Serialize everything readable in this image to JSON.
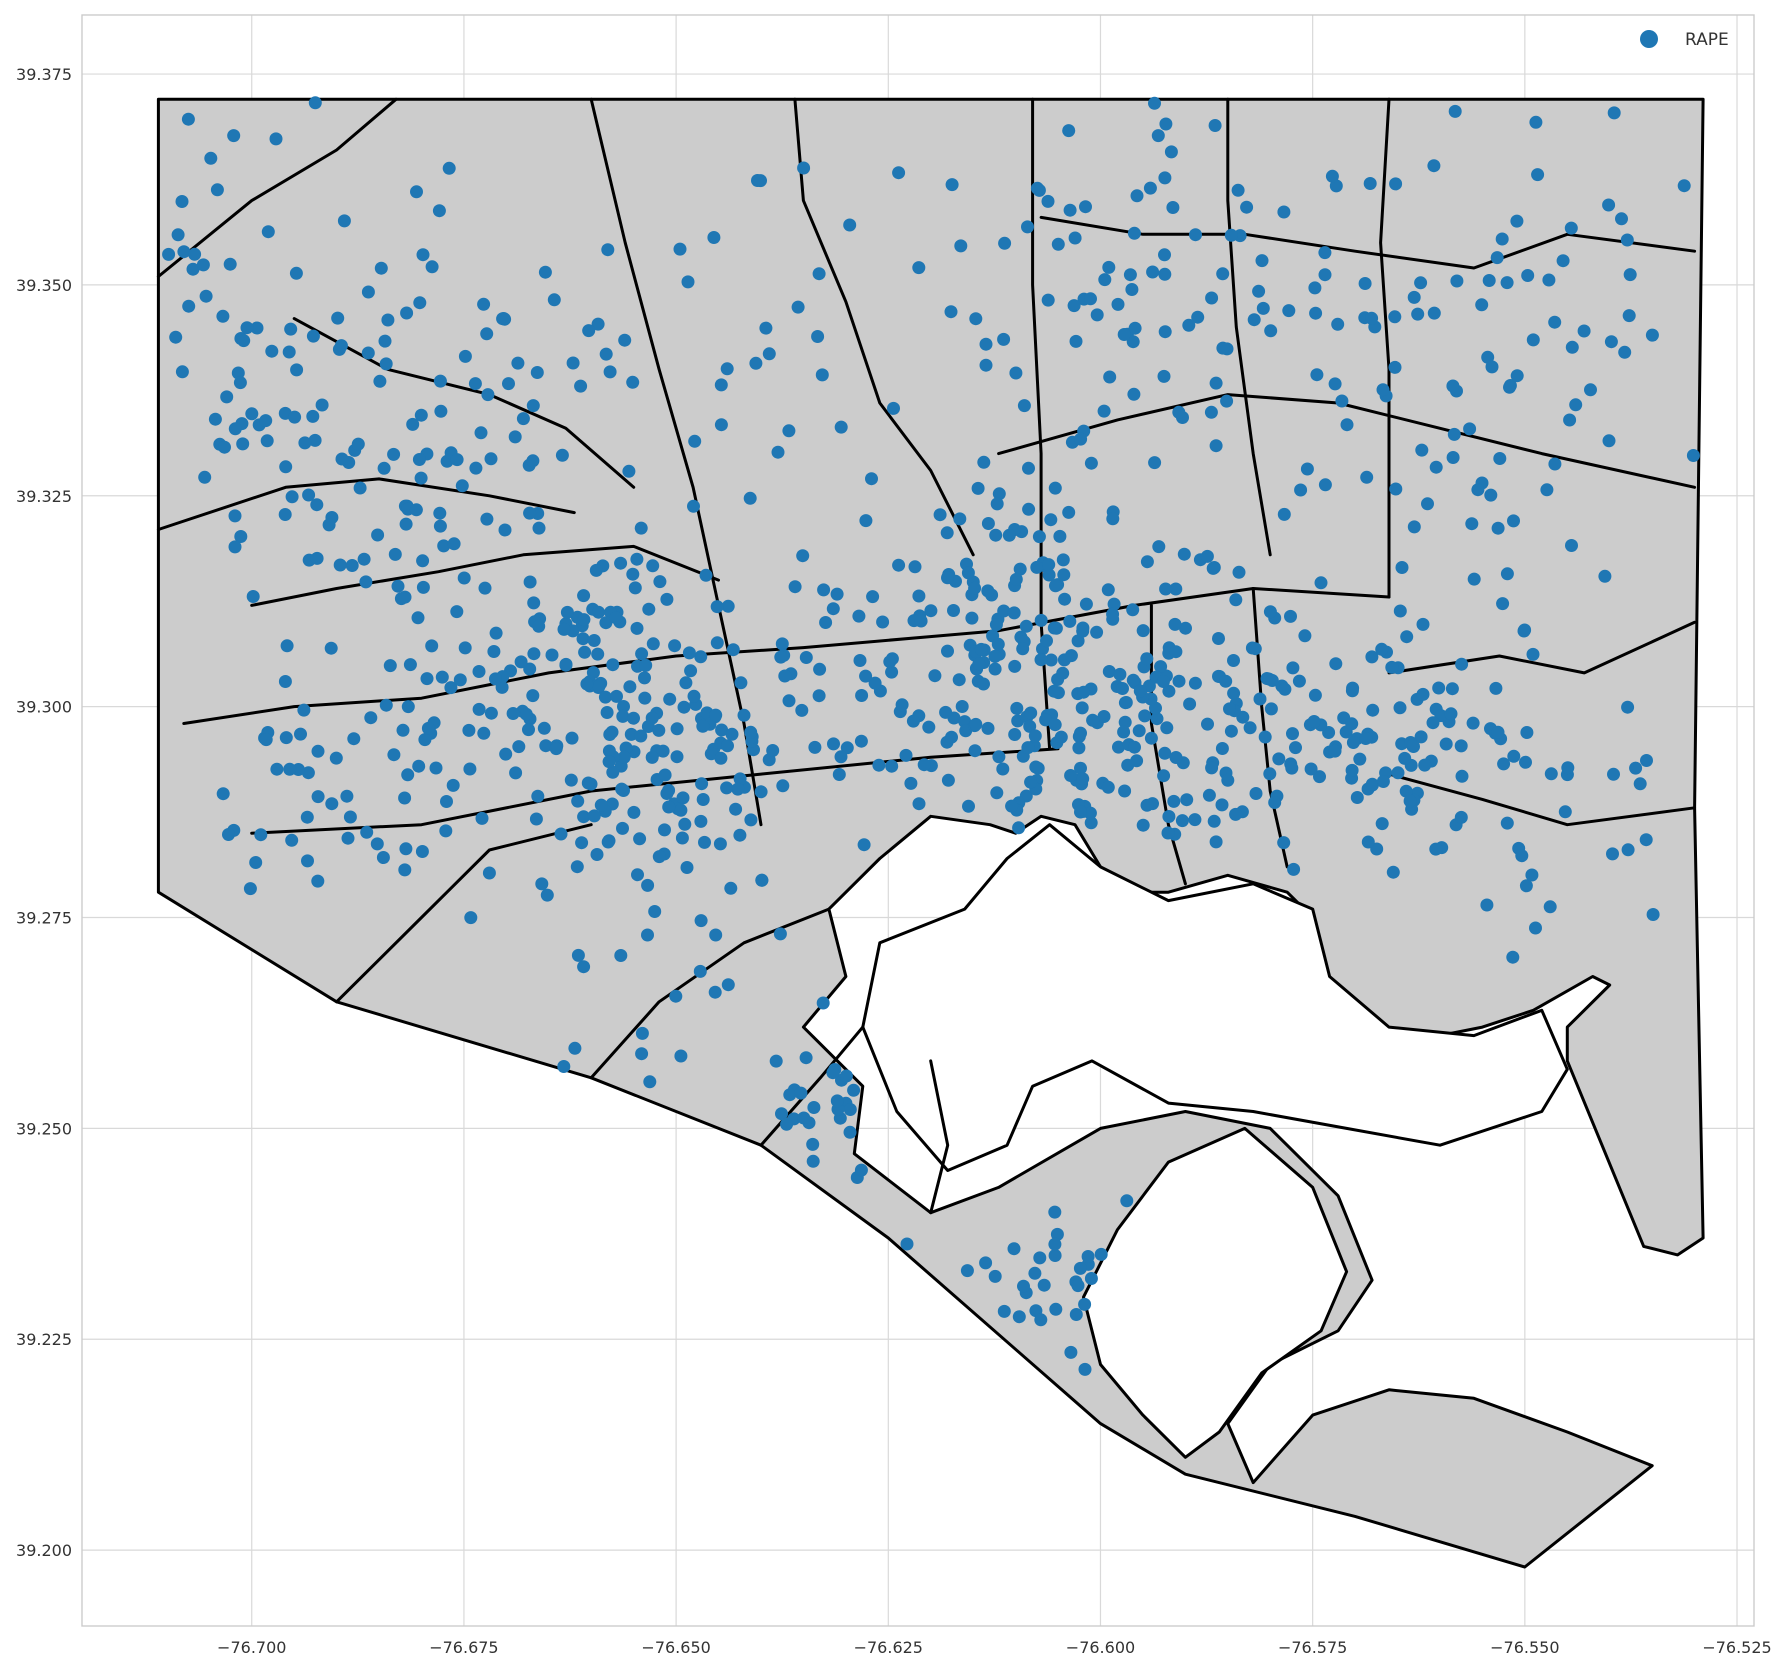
{
  "chart_data": {
    "type": "scatter",
    "title": "",
    "xlabel": "",
    "ylabel": "",
    "xlim": [
      -76.72,
      -76.523
    ],
    "ylim": [
      39.191,
      39.382
    ],
    "xticks": [
      "−76.700",
      "−76.675",
      "−76.650",
      "−76.625",
      "−76.600",
      "−76.575",
      "−76.550",
      "−76.525"
    ],
    "xtick_values": [
      -76.7,
      -76.675,
      -76.65,
      -76.625,
      -76.6,
      -76.575,
      -76.55,
      -76.525
    ],
    "yticks": [
      "39.200",
      "39.225",
      "39.250",
      "39.275",
      "39.300",
      "39.325",
      "39.350",
      "39.375"
    ],
    "ytick_values": [
      39.2,
      39.225,
      39.25,
      39.275,
      39.3,
      39.325,
      39.35,
      39.375
    ],
    "grid": true,
    "legend": {
      "placement": "top-right",
      "entries": [
        "RAPE"
      ]
    },
    "colors": {
      "points": "#1f77b4",
      "land": "#cccccc",
      "boundary": "#000000",
      "grid": "#d9d9d9"
    },
    "city_outline": [
      [
        -76.711,
        39.372
      ],
      [
        -76.529,
        39.372
      ],
      [
        -76.53,
        39.288
      ],
      [
        -76.529,
        39.237
      ],
      [
        -76.532,
        39.235
      ],
      [
        -76.536,
        39.236
      ],
      [
        -76.545,
        39.258
      ],
      [
        -76.545,
        39.262
      ],
      [
        -76.54,
        39.267
      ],
      [
        -76.542,
        39.268
      ],
      [
        -76.549,
        39.264
      ],
      [
        -76.555,
        39.262
      ],
      [
        -76.565,
        39.26
      ],
      [
        -76.572,
        39.262
      ],
      [
        -76.574,
        39.268
      ],
      [
        -76.575,
        39.275
      ],
      [
        -76.578,
        39.278
      ],
      [
        -76.585,
        39.28
      ],
      [
        -76.592,
        39.278
      ],
      [
        -76.598,
        39.278
      ],
      [
        -76.6,
        39.281
      ],
      [
        -76.603,
        39.286
      ],
      [
        -76.607,
        39.287
      ],
      [
        -76.61,
        39.285
      ],
      [
        -76.613,
        39.286
      ],
      [
        -76.62,
        39.287
      ],
      [
        -76.626,
        39.282
      ],
      [
        -76.632,
        39.276
      ],
      [
        -76.63,
        39.268
      ],
      [
        -76.635,
        39.262
      ],
      [
        -76.628,
        39.255
      ],
      [
        -76.629,
        39.247
      ],
      [
        -76.62,
        39.24
      ],
      [
        -76.612,
        39.243
      ],
      [
        -76.6,
        39.25
      ],
      [
        -76.59,
        39.252
      ],
      [
        -76.58,
        39.25
      ],
      [
        -76.572,
        39.242
      ],
      [
        -76.568,
        39.232
      ],
      [
        -76.572,
        39.226
      ],
      [
        -76.58,
        39.222
      ],
      [
        -76.585,
        39.215
      ],
      [
        -76.582,
        39.208
      ],
      [
        -76.575,
        39.216
      ],
      [
        -76.566,
        39.219
      ],
      [
        -76.556,
        39.218
      ],
      [
        -76.545,
        39.214
      ],
      [
        -76.535,
        39.21
      ],
      [
        -76.55,
        39.198
      ],
      [
        -76.57,
        39.204
      ],
      [
        -76.59,
        39.209
      ],
      [
        -76.6,
        39.215
      ],
      [
        -76.625,
        39.237
      ],
      [
        -76.64,
        39.248
      ],
      [
        -76.66,
        39.256
      ],
      [
        -76.69,
        39.265
      ],
      [
        -76.711,
        39.278
      ]
    ],
    "water_areas": [
      [
        [
          -76.606,
          39.286
        ],
        [
          -76.6,
          39.281
        ],
        [
          -76.592,
          39.277
        ],
        [
          -76.582,
          39.279
        ],
        [
          -76.575,
          39.276
        ],
        [
          -76.573,
          39.268
        ],
        [
          -76.566,
          39.262
        ],
        [
          -76.556,
          39.261
        ],
        [
          -76.548,
          39.264
        ],
        [
          -76.545,
          39.257
        ],
        [
          -76.548,
          39.252
        ],
        [
          -76.56,
          39.248
        ],
        [
          -76.571,
          39.25
        ],
        [
          -76.582,
          39.252
        ],
        [
          -76.592,
          39.253
        ],
        [
          -76.601,
          39.258
        ],
        [
          -76.608,
          39.255
        ],
        [
          -76.611,
          39.248
        ],
        [
          -76.618,
          39.245
        ],
        [
          -76.624,
          39.252
        ],
        [
          -76.628,
          39.262
        ],
        [
          -76.626,
          39.272
        ],
        [
          -76.616,
          39.276
        ],
        [
          -76.611,
          39.282
        ]
      ],
      [
        [
          -76.583,
          39.25
        ],
        [
          -76.575,
          39.243
        ],
        [
          -76.571,
          39.233
        ],
        [
          -76.574,
          39.226
        ],
        [
          -76.581,
          39.221
        ],
        [
          -76.586,
          39.214
        ],
        [
          -76.59,
          39.211
        ],
        [
          -76.595,
          39.216
        ],
        [
          -76.6,
          39.222
        ],
        [
          -76.602,
          39.23
        ],
        [
          -76.598,
          39.238
        ],
        [
          -76.592,
          39.246
        ]
      ]
    ],
    "boundaries": [
      [
        [
          -76.711,
          39.351
        ],
        [
          -76.7,
          39.36
        ],
        [
          -76.69,
          39.366
        ],
        [
          -76.683,
          39.372
        ]
      ],
      [
        [
          -76.711,
          39.321
        ],
        [
          -76.696,
          39.326
        ],
        [
          -76.685,
          39.327
        ],
        [
          -76.672,
          39.325
        ],
        [
          -76.662,
          39.323
        ]
      ],
      [
        [
          -76.708,
          39.298
        ],
        [
          -76.695,
          39.3
        ],
        [
          -76.68,
          39.301
        ],
        [
          -76.665,
          39.304
        ],
        [
          -76.65,
          39.306
        ],
        [
          -76.635,
          39.307
        ],
        [
          -76.612,
          39.309
        ],
        [
          -76.596,
          39.312
        ],
        [
          -76.582,
          39.314
        ],
        [
          -76.566,
          39.313
        ]
      ],
      [
        [
          -76.7,
          39.285
        ],
        [
          -76.68,
          39.286
        ],
        [
          -76.66,
          39.29
        ],
        [
          -76.64,
          39.292
        ],
        [
          -76.62,
          39.294
        ],
        [
          -76.605,
          39.295
        ]
      ],
      [
        [
          -76.608,
          39.372
        ],
        [
          -76.608,
          39.35
        ],
        [
          -76.607,
          39.33
        ],
        [
          -76.607,
          39.31
        ],
        [
          -76.606,
          39.295
        ]
      ],
      [
        [
          -76.66,
          39.372
        ],
        [
          -76.656,
          39.355
        ],
        [
          -76.652,
          39.34
        ],
        [
          -76.648,
          39.326
        ],
        [
          -76.645,
          39.312
        ],
        [
          -76.642,
          39.298
        ],
        [
          -76.64,
          39.286
        ]
      ],
      [
        [
          -76.695,
          39.346
        ],
        [
          -76.684,
          39.34
        ],
        [
          -76.672,
          39.337
        ],
        [
          -76.663,
          39.333
        ],
        [
          -76.655,
          39.326
        ]
      ],
      [
        [
          -76.636,
          39.372
        ],
        [
          -76.635,
          39.36
        ],
        [
          -76.63,
          39.348
        ],
        [
          -76.626,
          39.336
        ],
        [
          -76.62,
          39.328
        ],
        [
          -76.615,
          39.318
        ]
      ],
      [
        [
          -76.612,
          39.33
        ],
        [
          -76.598,
          39.334
        ],
        [
          -76.585,
          39.337
        ],
        [
          -76.572,
          39.336
        ],
        [
          -76.56,
          39.333
        ],
        [
          -76.548,
          39.33
        ],
        [
          -76.53,
          39.326
        ]
      ],
      [
        [
          -76.607,
          39.358
        ],
        [
          -76.595,
          39.356
        ],
        [
          -76.583,
          39.356
        ],
        [
          -76.57,
          39.354
        ],
        [
          -76.556,
          39.352
        ],
        [
          -76.545,
          39.356
        ],
        [
          -76.53,
          39.354
        ]
      ],
      [
        [
          -76.585,
          39.372
        ],
        [
          -76.585,
          39.36
        ],
        [
          -76.584,
          39.345
        ],
        [
          -76.582,
          39.33
        ],
        [
          -76.58,
          39.318
        ]
      ],
      [
        [
          -76.566,
          39.372
        ],
        [
          -76.567,
          39.355
        ],
        [
          -76.566,
          39.34
        ],
        [
          -76.566,
          39.326
        ],
        [
          -76.566,
          39.313
        ]
      ],
      [
        [
          -76.566,
          39.304
        ],
        [
          -76.553,
          39.306
        ],
        [
          -76.543,
          39.304
        ],
        [
          -76.53,
          39.31
        ]
      ],
      [
        [
          -76.566,
          39.292
        ],
        [
          -76.555,
          39.289
        ],
        [
          -76.545,
          39.286
        ],
        [
          -76.53,
          39.288
        ]
      ],
      [
        [
          -76.7,
          39.312
        ],
        [
          -76.69,
          39.314
        ],
        [
          -76.678,
          39.316
        ],
        [
          -76.668,
          39.318
        ],
        [
          -76.655,
          39.319
        ],
        [
          -76.645,
          39.315
        ]
      ],
      [
        [
          -76.69,
          39.265
        ],
        [
          -76.68,
          39.275
        ],
        [
          -76.672,
          39.283
        ],
        [
          -76.66,
          39.286
        ]
      ],
      [
        [
          -76.66,
          39.256
        ],
        [
          -76.652,
          39.265
        ],
        [
          -76.642,
          39.272
        ],
        [
          -76.632,
          39.276
        ]
      ],
      [
        [
          -76.64,
          39.248
        ],
        [
          -76.633,
          39.256
        ],
        [
          -76.628,
          39.262
        ]
      ],
      [
        [
          -76.62,
          39.24
        ],
        [
          -76.618,
          39.248
        ],
        [
          -76.62,
          39.258
        ]
      ],
      [
        [
          -76.594,
          39.312
        ],
        [
          -76.594,
          39.298
        ],
        [
          -76.592,
          39.286
        ],
        [
          -76.59,
          39.279
        ]
      ],
      [
        [
          -76.582,
          39.314
        ],
        [
          -76.581,
          39.3
        ],
        [
          -76.58,
          39.29
        ],
        [
          -76.578,
          39.281
        ]
      ]
    ],
    "point_series": {
      "name": "RAPE",
      "clusters": [
        {
          "cx": -76.655,
          "cy": 39.298,
          "sx": 0.012,
          "sy": 0.01,
          "n": 240
        },
        {
          "cx": -76.612,
          "cy": 39.305,
          "sx": 0.01,
          "sy": 0.011,
          "n": 200
        },
        {
          "cx": -76.588,
          "cy": 39.3,
          "sx": 0.011,
          "sy": 0.008,
          "n": 130
        },
        {
          "cx": -76.565,
          "cy": 39.295,
          "sx": 0.006,
          "sy": 0.006,
          "n": 60
        },
        {
          "cx": -76.683,
          "cy": 39.332,
          "sx": 0.014,
          "sy": 0.012,
          "n": 120
        },
        {
          "cx": -76.69,
          "cy": 39.29,
          "sx": 0.01,
          "sy": 0.008,
          "n": 50
        },
        {
          "cx": -76.598,
          "cy": 39.35,
          "sx": 0.012,
          "sy": 0.012,
          "n": 80
        },
        {
          "cx": -76.555,
          "cy": 39.34,
          "sx": 0.015,
          "sy": 0.018,
          "n": 110
        },
        {
          "cx": -76.705,
          "cy": 39.35,
          "sx": 0.008,
          "sy": 0.012,
          "n": 30
        },
        {
          "cx": -76.643,
          "cy": 39.34,
          "sx": 0.01,
          "sy": 0.012,
          "n": 30
        },
        {
          "cx": -76.62,
          "cy": 39.252,
          "sx": 0.008,
          "sy": 0.005,
          "n": 25
        },
        {
          "cx": -76.6,
          "cy": 39.232,
          "sx": 0.008,
          "sy": 0.005,
          "n": 30
        },
        {
          "cx": -76.545,
          "cy": 39.285,
          "sx": 0.01,
          "sy": 0.008,
          "n": 28
        },
        {
          "cx": -76.65,
          "cy": 39.266,
          "sx": 0.012,
          "sy": 0.008,
          "n": 20
        }
      ]
    }
  }
}
